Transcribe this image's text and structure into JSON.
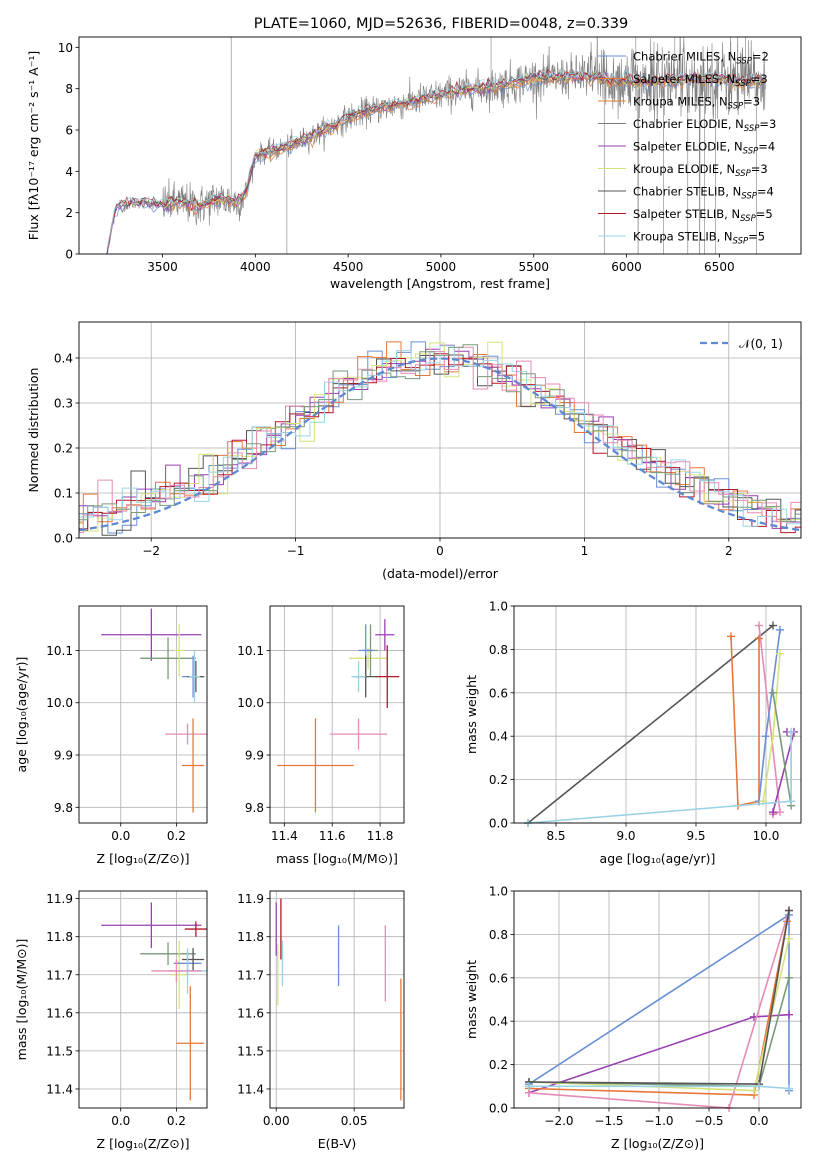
{
  "chart_data": [
    {
      "type": "line",
      "title": "PLATE=1060, MJD=52636, FIBERID=0048, z=0.339",
      "xlabel": "wavelength [Angstrom, rest frame]",
      "ylabel": "Flux [fλ10⁻¹⁷ erg cm⁻² s⁻¹ A⁻¹]",
      "xlim": [
        3050,
        6940
      ],
      "ylim": [
        0,
        10.5
      ],
      "xticks": [
        3500,
        4000,
        4500,
        5000,
        5500,
        6000,
        6500
      ],
      "yticks": [
        0,
        2,
        4,
        6,
        8,
        10
      ],
      "grid": false,
      "legend_position": "top-right",
      "spectrum_anchors": {
        "x": [
          3200,
          3250,
          3300,
          3400,
          3500,
          3600,
          3700,
          3800,
          3900,
          3950,
          4000,
          4100,
          4200,
          4300,
          4400,
          4500,
          4600,
          4700,
          4800,
          4900,
          5000,
          5100,
          5200,
          5300,
          5400,
          5500,
          5600,
          5700,
          5800,
          5900,
          6000,
          6100,
          6200,
          6300,
          6400,
          6500,
          6600,
          6750
        ],
        "y": [
          0,
          2.3,
          2.4,
          2.5,
          2.4,
          2.5,
          2.3,
          2.7,
          2.5,
          3.0,
          4.8,
          5.0,
          5.3,
          5.7,
          6.1,
          6.6,
          6.9,
          7.1,
          7.3,
          7.5,
          7.7,
          7.9,
          8.0,
          8.1,
          8.3,
          8.5,
          8.5,
          8.6,
          8.6,
          8.4,
          8.4,
          8.3,
          8.4,
          8.4,
          8.5,
          8.5,
          8.3,
          8.4
        ]
      },
      "series": [
        {
          "name": "Chabrier MILES, N_SSP=2",
          "color": "#6a8fd6"
        },
        {
          "name": "Salpeter MILES, N_SSP=3",
          "color": "#e8773a"
        },
        {
          "name": "Kroupa MILES, N_SSP=3",
          "color": "#e0812a"
        },
        {
          "name": "Chabrier ELODIE, N_SSP=3",
          "color": "#7a7a7a"
        },
        {
          "name": "Salpeter ELODIE, N_SSP=4",
          "color": "#9b3fb4"
        },
        {
          "name": "Kroupa ELODIE, N_SSP=3",
          "color": "#d6e37a"
        },
        {
          "name": "Chabrier STELIB, N_SSP=4",
          "color": "#555555"
        },
        {
          "name": "Salpeter STELIB, N_SSP=5",
          "color": "#b5172a"
        },
        {
          "name": "Kroupa STELIB, N_SSP=5",
          "color": "#9bd3e6"
        }
      ]
    },
    {
      "type": "line",
      "xlabel": "(data-model)/error",
      "ylabel": "Normed distribution",
      "xlim": [
        -2.5,
        2.5
      ],
      "ylim": [
        0,
        0.48
      ],
      "xticks": [
        -2,
        -1,
        0,
        1,
        2
      ],
      "yticks": [
        0.0,
        0.1,
        0.2,
        0.3,
        0.4
      ],
      "grid": true,
      "legend_position": "top-right",
      "legend": [
        "𝒩(0, 1)"
      ],
      "reference_curve": {
        "name": "𝒩(0, 1)",
        "mean": 0,
        "sigma": 1,
        "color": "#5e88d2"
      },
      "histogram_bin_width": 0.1,
      "histogram_colors": [
        "#6a8fd6",
        "#e8773a",
        "#555555",
        "#9b3fb4",
        "#d6e37a",
        "#b5172a",
        "#9bd3e6",
        "#e58bb7",
        "#7a9a7a"
      ]
    },
    {
      "type": "scatter",
      "xlabel": "Z [log₁₀(Z/Z⊙)]",
      "ylabel": "age  [log₁₀(age/yr)]",
      "xlim": [
        -0.15,
        0.31
      ],
      "ylim": [
        9.77,
        10.185
      ],
      "xticks": [
        0.0,
        0.2
      ],
      "xticklabels": [
        "0.0",
        "0.2"
      ],
      "yticks": [
        9.8,
        9.9,
        10.0,
        10.1
      ],
      "yticklabels": [
        "9.8",
        "9.9",
        "10.0",
        "10.1"
      ],
      "points": [
        {
          "x": 0.11,
          "y": 10.13,
          "xerr": 0.18,
          "yerr": 0.05,
          "color": "#9b3fb4"
        },
        {
          "x": 0.17,
          "y": 10.085,
          "xerr": 0.1,
          "yerr": 0.04,
          "color": "#7a9a7a"
        },
        {
          "x": 0.21,
          "y": 10.1,
          "xerr": 0.02,
          "yerr": 0.05,
          "color": "#d6e37a"
        },
        {
          "x": 0.26,
          "y": 10.05,
          "xerr": 0.04,
          "yerr": 0.04,
          "color": "#6a8fd6"
        },
        {
          "x": 0.27,
          "y": 10.05,
          "xerr": 0.03,
          "yerr": 0.03,
          "color": "#555555"
        },
        {
          "x": 0.265,
          "y": 10.05,
          "xerr": 0.02,
          "yerr": 0.05,
          "color": "#9bd3e6"
        },
        {
          "x": 0.24,
          "y": 9.94,
          "xerr": 0.08,
          "yerr": 0.02,
          "color": "#e58bb7"
        },
        {
          "x": 0.26,
          "y": 9.88,
          "xerr": 0.04,
          "yerr": 0.09,
          "color": "#e8773a"
        }
      ]
    },
    {
      "type": "scatter",
      "xlabel": "mass [log₁₀(M/M⊙)]",
      "ylabel": "",
      "xlim": [
        11.34,
        11.9
      ],
      "ylim": [
        9.77,
        10.185
      ],
      "xticks": [
        11.4,
        11.6,
        11.8
      ],
      "xticklabels": [
        "11.4",
        "11.6",
        "11.8"
      ],
      "yticks": [
        9.8,
        9.9,
        10.0,
        10.1
      ],
      "yticklabels": [
        "9.8",
        "9.9",
        "10.0",
        "10.1"
      ],
      "points": [
        {
          "x": 11.82,
          "y": 10.13,
          "xerr": 0.04,
          "yerr": 0.03,
          "color": "#9b3fb4"
        },
        {
          "x": 11.75,
          "y": 10.085,
          "xerr": 0.08,
          "yerr": 0.02,
          "color": "#d6e37a"
        },
        {
          "x": 11.76,
          "y": 10.1,
          "xerr": 0.03,
          "yerr": 0.05,
          "color": "#7a9a7a"
        },
        {
          "x": 11.74,
          "y": 10.1,
          "xerr": 0.03,
          "yerr": 0.05,
          "color": "#6a8fd6"
        },
        {
          "x": 11.83,
          "y": 10.05,
          "xerr": 0.05,
          "yerr": 0.06,
          "color": "#b5172a"
        },
        {
          "x": 11.74,
          "y": 10.05,
          "xerr": 0.05,
          "yerr": 0.04,
          "color": "#555555"
        },
        {
          "x": 11.71,
          "y": 10.05,
          "xerr": 0.03,
          "yerr": 0.03,
          "color": "#9bd3e6"
        },
        {
          "x": 11.71,
          "y": 9.94,
          "xerr": 0.12,
          "yerr": 0.03,
          "color": "#e58bb7"
        },
        {
          "x": 11.53,
          "y": 9.88,
          "xerr": 0.16,
          "yerr": 0.09,
          "color": "#e8773a"
        }
      ]
    },
    {
      "type": "line",
      "xlabel": "age  [log₁₀(age/yr)]",
      "ylabel": "mass weight",
      "xlim": [
        8.2,
        10.25
      ],
      "ylim": [
        0,
        1.0
      ],
      "xticks": [
        8.5,
        9.0,
        9.5,
        10.0
      ],
      "xticklabels": [
        "8.5",
        "9.0",
        "9.5",
        "10.0"
      ],
      "yticks": [
        0.0,
        0.2,
        0.4,
        0.6,
        0.8,
        1.0
      ],
      "yticklabels": [
        "0.0",
        "0.2",
        "0.4",
        "0.6",
        "0.8",
        "1.0"
      ],
      "grid": true,
      "series": [
        {
          "color": "#555555",
          "x": [
            8.3,
            10.05
          ],
          "y": [
            0.0,
            0.91
          ]
        },
        {
          "color": "#e58bb7",
          "x": [
            9.95,
            10.1,
            10.05
          ],
          "y": [
            0.91,
            0.05,
            0.04
          ]
        },
        {
          "color": "#e8773a",
          "x": [
            9.75,
            9.8,
            9.95,
            9.95
          ],
          "y": [
            0.86,
            0.08,
            0.1,
            0.85
          ]
        },
        {
          "color": "#6a8fd6",
          "x": [
            10.1,
            10.0,
            9.95
          ],
          "y": [
            0.89,
            0.4,
            0.1
          ]
        },
        {
          "color": "#d6e37a",
          "x": [
            10.1,
            10.05,
            9.98
          ],
          "y": [
            0.78,
            0.4,
            0.1
          ]
        },
        {
          "color": "#9b3fb4",
          "x": [
            10.05,
            10.2,
            10.15
          ],
          "y": [
            0.05,
            0.42,
            0.42
          ]
        },
        {
          "color": "#7a9a7a",
          "x": [
            10.05,
            10.18,
            10.18
          ],
          "y": [
            0.6,
            0.08,
            0.4
          ]
        },
        {
          "color": "#9bd3e6",
          "x": [
            8.3,
            10.18,
            10.18
          ],
          "y": [
            0.0,
            0.1,
            0.42
          ]
        }
      ]
    },
    {
      "type": "scatter",
      "xlabel": "Z [log₁₀(Z/Z⊙)]",
      "ylabel": "mass [log₁₀(M/M⊙)]",
      "xlim": [
        -0.15,
        0.31
      ],
      "ylim": [
        11.35,
        11.92
      ],
      "xticks": [
        0.0,
        0.2
      ],
      "xticklabels": [
        "0.0",
        "0.2"
      ],
      "yticks": [
        11.4,
        11.5,
        11.6,
        11.7,
        11.8,
        11.9
      ],
      "yticklabels": [
        "11.4",
        "11.5",
        "11.6",
        "11.7",
        "11.8",
        "11.9"
      ],
      "points": [
        {
          "x": 0.11,
          "y": 11.83,
          "xerr": 0.18,
          "yerr": 0.06,
          "color": "#9b3fb4"
        },
        {
          "x": 0.27,
          "y": 11.82,
          "xerr": 0.04,
          "yerr": 0.02,
          "color": "#b5172a"
        },
        {
          "x": 0.17,
          "y": 11.755,
          "xerr": 0.1,
          "yerr": 0.03,
          "color": "#7a9a7a"
        },
        {
          "x": 0.21,
          "y": 11.7,
          "xerr": 0.03,
          "yerr": 0.09,
          "color": "#d6e37a"
        },
        {
          "x": 0.24,
          "y": 11.73,
          "xerr": 0.05,
          "yerr": 0.03,
          "color": "#6a8fd6"
        },
        {
          "x": 0.26,
          "y": 11.74,
          "xerr": 0.04,
          "yerr": 0.03,
          "color": "#555555"
        },
        {
          "x": 0.24,
          "y": 11.71,
          "xerr": 0.07,
          "yerr": 0.06,
          "color": "#9bd3e6"
        },
        {
          "x": 0.2,
          "y": 11.71,
          "xerr": 0.09,
          "yerr": 0.03,
          "color": "#e58bb7"
        },
        {
          "x": 0.25,
          "y": 11.52,
          "xerr": 0.05,
          "yerr": 0.15,
          "color": "#e8773a"
        }
      ]
    },
    {
      "type": "scatter",
      "xlabel": "E(B-V)",
      "ylabel": "",
      "xlim": [
        -0.004,
        0.082
      ],
      "ylim": [
        11.35,
        11.92
      ],
      "xticks": [
        0.0,
        0.05
      ],
      "xticklabels": [
        "0.00",
        "0.05"
      ],
      "yticks": [
        11.4,
        11.5,
        11.6,
        11.7,
        11.8,
        11.9
      ],
      "yticklabels": [
        "11.4",
        "11.5",
        "11.6",
        "11.7",
        "11.8",
        "11.9"
      ],
      "points": [
        {
          "x": 0.0,
          "y": 11.82,
          "xerr": 0,
          "yerr": 0.07,
          "color": "#9b3fb4"
        },
        {
          "x": 0.003,
          "y": 11.82,
          "xerr": 0,
          "yerr": 0.08,
          "color": "#b5172a"
        },
        {
          "x": 0.001,
          "y": 11.7,
          "xerr": 0,
          "yerr": 0.08,
          "color": "#d6e37a"
        },
        {
          "x": 0.004,
          "y": 11.73,
          "xerr": 0,
          "yerr": 0.06,
          "color": "#9bd3e6"
        },
        {
          "x": 0.04,
          "y": 11.75,
          "xerr": 0,
          "yerr": 0.08,
          "color": "#6a8fd6"
        },
        {
          "x": 0.07,
          "y": 11.73,
          "xerr": 0,
          "yerr": 0.1,
          "color": "#e58bb7"
        },
        {
          "x": 0.08,
          "y": 11.53,
          "xerr": 0,
          "yerr": 0.16,
          "color": "#e8773a"
        }
      ]
    },
    {
      "type": "line",
      "xlabel": "Z [log₁₀(Z/Z⊙)]",
      "ylabel": "mass weight",
      "xlim": [
        -2.45,
        0.42
      ],
      "ylim": [
        0,
        1.0
      ],
      "xticks": [
        -2.0,
        -1.5,
        -1.0,
        -0.5,
        0.0
      ],
      "xticklabels": [
        "−2.0",
        "−1.5",
        "−1.0",
        "−0.5",
        "0.0"
      ],
      "yticks": [
        0.0,
        0.2,
        0.4,
        0.6,
        0.8,
        1.0
      ],
      "yticklabels": [
        "0.0",
        "0.2",
        "0.4",
        "0.6",
        "0.8",
        "1.0"
      ],
      "grid": true,
      "series": [
        {
          "color": "#6a8fd6",
          "x": [
            -2.3,
            0.3,
            0.3
          ],
          "y": [
            0.11,
            0.89,
            0.08
          ]
        },
        {
          "color": "#9b3fb4",
          "x": [
            -2.3,
            -0.05,
            0.3
          ],
          "y": [
            0.07,
            0.42,
            0.43
          ]
        },
        {
          "color": "#e8773a",
          "x": [
            -2.3,
            -0.05,
            0.28,
            0.3
          ],
          "y": [
            0.09,
            0.06,
            0.86,
            0.91
          ]
        },
        {
          "color": "#e58bb7",
          "x": [
            -2.3,
            -0.3,
            0.3
          ],
          "y": [
            0.07,
            0.0,
            0.91
          ]
        },
        {
          "color": "#d6e37a",
          "x": [
            -2.3,
            -0.05,
            0.3
          ],
          "y": [
            0.12,
            0.08,
            0.78
          ]
        },
        {
          "color": "#7a9a7a",
          "x": [
            -2.3,
            0.0,
            0.3
          ],
          "y": [
            0.12,
            0.1,
            0.6
          ]
        },
        {
          "color": "#555555",
          "x": [
            -2.3,
            0.0,
            0.3
          ],
          "y": [
            0.12,
            0.11,
            0.91
          ]
        },
        {
          "color": "#9bd3e6",
          "x": [
            -2.3,
            0.0,
            0.3
          ],
          "y": [
            0.1,
            0.1,
            0.09
          ]
        }
      ]
    }
  ]
}
